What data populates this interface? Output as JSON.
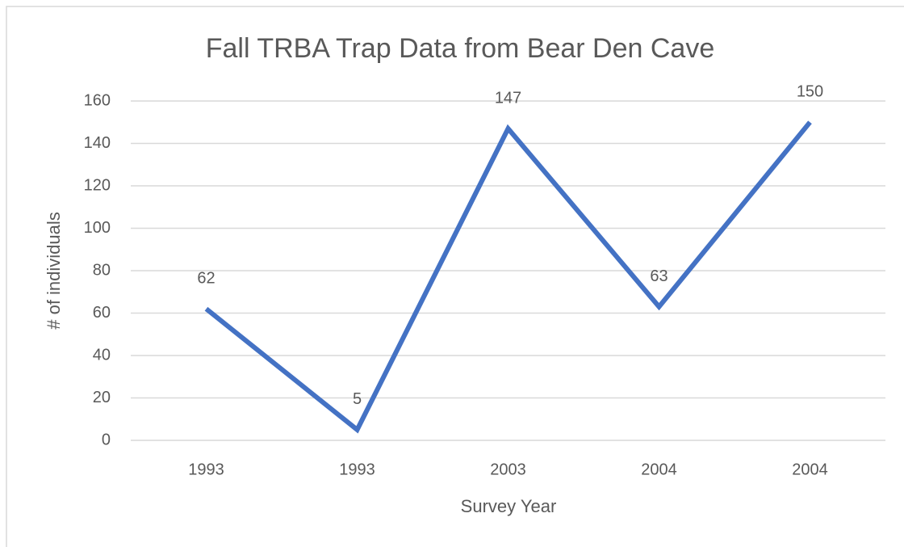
{
  "chart_data": {
    "type": "line",
    "title": "Fall TRBA Trap Data from Bear Den Cave",
    "x_label": "Survey Year",
    "y_label": "# of individuals",
    "categories": [
      "1993",
      "1993",
      "2003",
      "2004",
      "2004"
    ],
    "values": [
      62,
      5,
      147,
      63,
      150
    ],
    "color": "#4472c4",
    "ylim": [
      0,
      160
    ],
    "yticks": [
      0,
      20,
      40,
      60,
      80,
      100,
      120,
      140,
      160
    ],
    "grid": true
  }
}
